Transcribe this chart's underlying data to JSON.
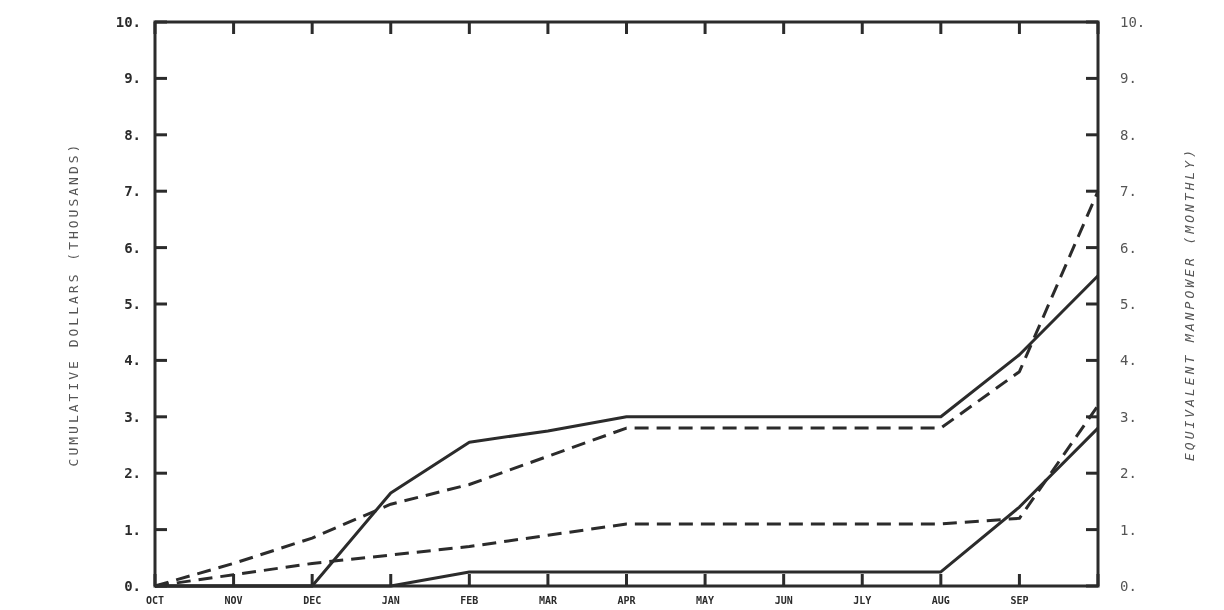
{
  "chart_data": {
    "type": "line",
    "ylabel": "CUMULATIVE DOLLARS (THOUSANDS)",
    "y2label": "EQUIVALENT MANPOWER (MONTHLY)",
    "categories": [
      "OCT",
      "NOV",
      "DEC",
      "JAN",
      "FEB",
      "MAR",
      "APR",
      "MAY",
      "JUN",
      "JLY",
      "AUG",
      "SEP",
      null
    ],
    "ylim": [
      0,
      10
    ],
    "yticks": [
      {
        "value": 0,
        "label": "0."
      },
      {
        "value": 1,
        "label": "1."
      },
      {
        "value": 2,
        "label": "2."
      },
      {
        "value": 3,
        "label": "3."
      },
      {
        "value": 4,
        "label": "4."
      },
      {
        "value": 5,
        "label": "5."
      },
      {
        "value": 6,
        "label": "6."
      },
      {
        "value": 7,
        "label": "7."
      },
      {
        "value": 8,
        "label": "8."
      },
      {
        "value": 9,
        "label": "9."
      },
      {
        "value": 10,
        "label": "10."
      }
    ],
    "y2lim": [
      0,
      10
    ],
    "y2ticks": [
      {
        "value": 0,
        "label": "0."
      },
      {
        "value": 1,
        "label": "1."
      },
      {
        "value": 2,
        "label": "2."
      },
      {
        "value": 3,
        "label": "3."
      },
      {
        "value": 4,
        "label": "4."
      },
      {
        "value": 5,
        "label": "5."
      },
      {
        "value": 6,
        "label": "6."
      },
      {
        "value": 7,
        "label": "7."
      },
      {
        "value": 8,
        "label": "8."
      },
      {
        "value": 9,
        "label": "9."
      },
      {
        "value": 10,
        "label": "10."
      }
    ],
    "grid": false,
    "marker": "none",
    "series": [
      {
        "color": "#2b2b2b",
        "line_style": "solid",
        "values": [
          0,
          0,
          0,
          1.65,
          2.55,
          2.75,
          3.0,
          3.0,
          3.0,
          3.0,
          3.0,
          4.1,
          5.5
        ]
      },
      {
        "color": "#2b2b2b",
        "line_style": "dashed",
        "values": [
          0,
          0.4,
          0.85,
          1.45,
          1.8,
          2.3,
          2.8,
          2.8,
          2.8,
          2.8,
          2.8,
          3.8,
          7.0
        ]
      },
      {
        "color": "#2b2b2b",
        "line_style": "dashed",
        "values": [
          0,
          0.2,
          0.4,
          0.55,
          0.7,
          0.9,
          1.1,
          1.1,
          1.1,
          1.1,
          1.1,
          1.2,
          3.2
        ]
      },
      {
        "color": "#2b2b2b",
        "line_style": "solid",
        "values": [
          0,
          0,
          0,
          0,
          0.25,
          0.25,
          0.25,
          0.25,
          0.25,
          0.25,
          0.25,
          1.4,
          2.8
        ]
      }
    ]
  }
}
